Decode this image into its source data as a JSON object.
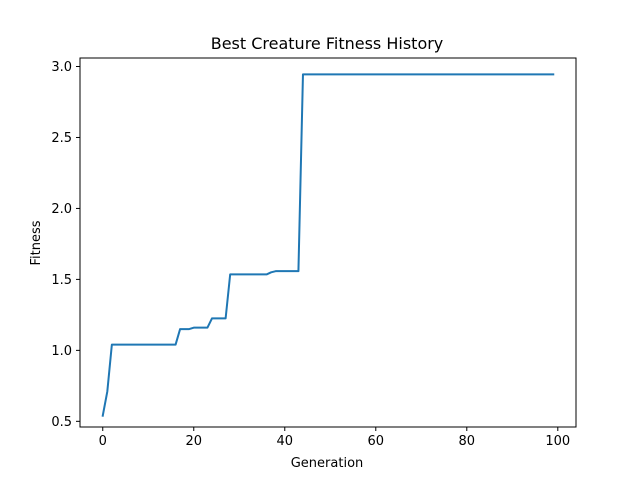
{
  "chart_data": {
    "type": "line",
    "title": "Best Creature Fitness History",
    "xlabel": "Generation",
    "ylabel": "Fitness",
    "xlim": [
      -5,
      104
    ],
    "ylim": [
      0.46,
      3.06
    ],
    "xticks": [
      0,
      20,
      40,
      60,
      80,
      100
    ],
    "xtick_labels": [
      "0",
      "20",
      "40",
      "60",
      "80",
      "100"
    ],
    "yticks": [
      0.5,
      1.0,
      1.5,
      2.0,
      2.5,
      3.0
    ],
    "ytick_labels": [
      "0.5",
      "1.0",
      "1.5",
      "2.0",
      "2.5",
      "3.0"
    ],
    "grid": false,
    "color": "#1f77b4",
    "series": [
      {
        "x": [
          0,
          1,
          2,
          3,
          16,
          17,
          19,
          20,
          23,
          24,
          27,
          28,
          36,
          37,
          38,
          43,
          44,
          99
        ],
        "y": [
          0.54,
          0.71,
          1.04,
          1.04,
          1.04,
          1.15,
          1.15,
          1.16,
          1.16,
          1.225,
          1.225,
          1.535,
          1.535,
          1.55,
          1.558,
          1.558,
          2.945,
          2.945
        ]
      }
    ]
  }
}
